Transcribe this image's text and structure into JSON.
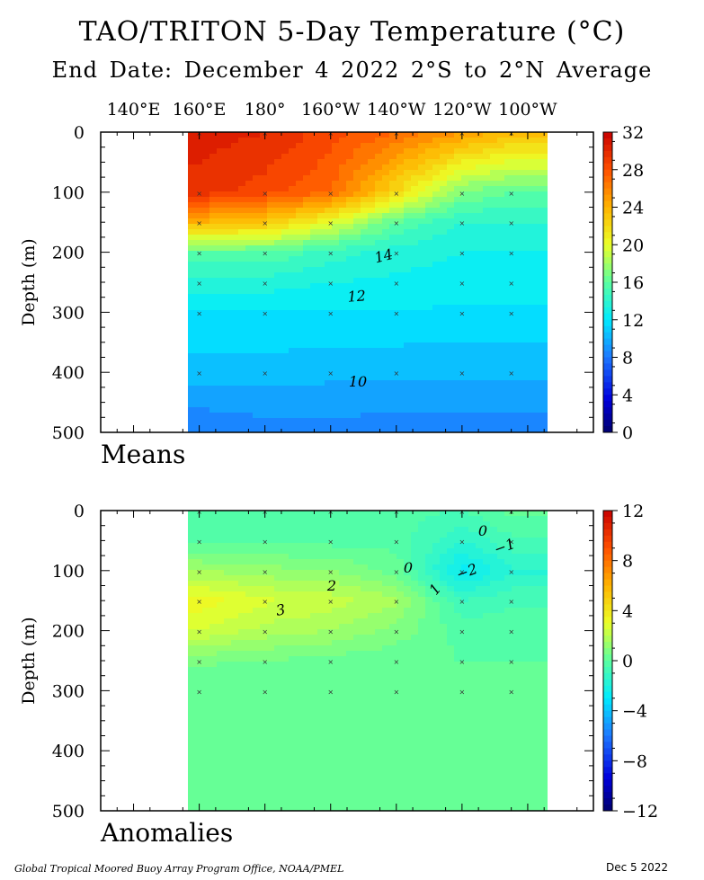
{
  "title": "TAO/TRITON 5-Day Temperature (°C)",
  "subtitle": "End Date: December 4 2022  2°S to 2°N Average",
  "footer_left": "Global Tropical Moored Buoy Array Program Office, NOAA/PMEL",
  "footer_right": "Dec  5 2022",
  "chart_data": [
    {
      "type": "heatmap",
      "panel_label": "Means",
      "ylabel": "Depth (m)",
      "x_tick_labels": [
        "140°E",
        "160°E",
        "180°",
        "160°W",
        "140°W",
        "120°W",
        "100°W"
      ],
      "y_tick_labels": [
        "0",
        "100",
        "200",
        "300",
        "400",
        "500"
      ],
      "ylim": [
        0,
        500
      ],
      "colorbar": {
        "ticks": [
          "32",
          "28",
          "24",
          "20",
          "16",
          "12",
          "8",
          "4",
          "0"
        ],
        "range": [
          0,
          32
        ]
      },
      "contour_labels": [
        "14",
        "12",
        "10"
      ],
      "profiles": [
        {
          "lon": "160°E",
          "x": 160,
          "depth": [
            0,
            100,
            150,
            200,
            250,
            300,
            400,
            500
          ],
          "temp": [
            30.5,
            29.5,
            24,
            16,
            13.5,
            12,
            10.5,
            8
          ]
        },
        {
          "lon": "180°",
          "x": 180,
          "depth": [
            0,
            100,
            150,
            200,
            250,
            300,
            400,
            500
          ],
          "temp": [
            30,
            28.5,
            23,
            16,
            13.5,
            12,
            10.5,
            8.5
          ]
        },
        {
          "lon": "160°W",
          "x": 200,
          "depth": [
            0,
            100,
            150,
            200,
            250,
            300,
            400,
            500
          ],
          "temp": [
            28.5,
            27,
            20,
            14.5,
            13,
            12,
            10.3,
            8.5
          ]
        },
        {
          "lon": "140°W",
          "x": 220,
          "depth": [
            0,
            100,
            150,
            200,
            250,
            300,
            400,
            500
          ],
          "temp": [
            27,
            22,
            16,
            13.5,
            12.8,
            12,
            10.2,
            8.5
          ]
        },
        {
          "lon": "120°W",
          "x": 240,
          "depth": [
            0,
            100,
            150,
            200,
            250,
            300,
            400,
            500
          ],
          "temp": [
            25,
            17,
            14,
            13,
            12.5,
            11.8,
            10.2,
            8.5
          ]
        },
        {
          "lon": "100°W",
          "x": 255,
          "depth": [
            0,
            100,
            150,
            200,
            250,
            300,
            400,
            500
          ],
          "temp": [
            23.5,
            16,
            14,
            13,
            12.5,
            11.8,
            10.2,
            8.5
          ]
        }
      ]
    },
    {
      "type": "heatmap",
      "panel_label": "Anomalies",
      "ylabel": "Depth (m)",
      "y_tick_labels": [
        "0",
        "100",
        "200",
        "300",
        "400",
        "500"
      ],
      "ylim": [
        0,
        500
      ],
      "colorbar": {
        "ticks": [
          "12",
          "8",
          "4",
          "0",
          "−4",
          "−8",
          "−12"
        ],
        "range": [
          -12,
          12
        ]
      },
      "contour_labels": [
        "2",
        "3",
        "0",
        "1",
        "0",
        "−1",
        "−2"
      ],
      "profiles": [
        {
          "lon": "160°E",
          "x": 160,
          "depth": [
            0,
            50,
            100,
            150,
            200,
            250,
            300,
            500
          ],
          "anom": [
            -0.5,
            -0.2,
            1.5,
            3.3,
            2.5,
            0.6,
            0,
            0
          ]
        },
        {
          "lon": "180°",
          "x": 180,
          "depth": [
            0,
            50,
            100,
            150,
            200,
            250,
            300,
            500
          ],
          "anom": [
            -0.5,
            -0.2,
            1.2,
            2.6,
            1.8,
            0.5,
            0,
            0
          ]
        },
        {
          "lon": "160°W",
          "x": 200,
          "depth": [
            0,
            50,
            100,
            150,
            200,
            250,
            300,
            500
          ],
          "anom": [
            -0.4,
            -0.2,
            1.0,
            2.3,
            1.5,
            0.3,
            0,
            0
          ]
        },
        {
          "lon": "140°W",
          "x": 220,
          "depth": [
            0,
            50,
            100,
            150,
            200,
            250,
            300,
            500
          ],
          "anom": [
            -0.3,
            -0.2,
            0.3,
            1.6,
            0.8,
            0.1,
            0,
            0
          ]
        },
        {
          "lon": "120°W",
          "x": 240,
          "depth": [
            0,
            50,
            100,
            150,
            200,
            250,
            300,
            500
          ],
          "anom": [
            -0.5,
            -1.5,
            -2.8,
            -1.0,
            -0.2,
            0,
            0,
            0
          ]
        },
        {
          "lon": "100°W",
          "x": 255,
          "depth": [
            0,
            50,
            100,
            150,
            200,
            250,
            300,
            500
          ],
          "anom": [
            0.2,
            -0.6,
            -1.6,
            -0.6,
            -0.2,
            0,
            0,
            0
          ]
        }
      ]
    }
  ]
}
